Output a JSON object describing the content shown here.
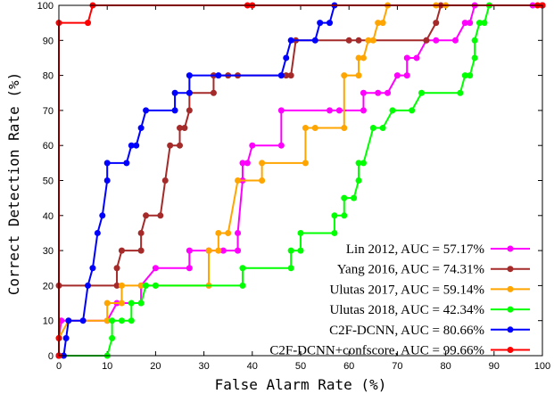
{
  "chart_data": {
    "type": "line",
    "xlabel": "False Alarm Rate (%)",
    "ylabel": "Correct Detection Rate (%)",
    "xlim": [
      0,
      100
    ],
    "ylim": [
      0,
      100
    ],
    "xticks": [
      "0",
      "10",
      "20",
      "30",
      "40",
      "50",
      "60",
      "70",
      "80",
      "90",
      "100"
    ],
    "yticks": [
      "0",
      "10",
      "20",
      "30",
      "40",
      "50",
      "60",
      "70",
      "80",
      "90",
      "100"
    ],
    "grid": false,
    "legend_position": "bottom-right",
    "series": [
      {
        "name": "Lin 2012, AUC = 57.17%",
        "color": "#ff00ff",
        "points": [
          [
            0,
            0
          ],
          [
            0,
            5
          ],
          [
            0.5,
            10
          ],
          [
            10,
            10
          ],
          [
            12,
            15
          ],
          [
            17,
            15
          ],
          [
            17,
            20
          ],
          [
            20,
            25
          ],
          [
            27,
            25
          ],
          [
            27,
            30
          ],
          [
            31,
            30
          ],
          [
            34,
            30
          ],
          [
            37,
            30
          ],
          [
            37,
            35
          ],
          [
            38,
            50
          ],
          [
            38,
            55
          ],
          [
            39,
            55
          ],
          [
            40,
            60
          ],
          [
            46,
            60
          ],
          [
            46,
            70
          ],
          [
            56,
            70
          ],
          [
            58,
            70
          ],
          [
            63,
            70
          ],
          [
            63,
            75
          ],
          [
            66,
            75
          ],
          [
            68,
            75
          ],
          [
            70,
            80
          ],
          [
            72,
            80
          ],
          [
            72,
            85
          ],
          [
            74,
            85
          ],
          [
            76,
            90
          ],
          [
            78,
            90
          ],
          [
            82,
            90
          ],
          [
            84,
            95
          ],
          [
            85,
            95
          ],
          [
            86,
            100
          ],
          [
            98,
            100
          ],
          [
            100,
            100
          ]
        ]
      },
      {
        "name": "Yang 2016, AUC = 74.31%",
        "color": "#a52a2a",
        "points": [
          [
            0,
            0
          ],
          [
            0,
            20
          ],
          [
            12,
            20
          ],
          [
            12,
            25
          ],
          [
            13,
            30
          ],
          [
            17,
            30
          ],
          [
            17,
            35
          ],
          [
            18,
            40
          ],
          [
            21,
            40
          ],
          [
            22,
            50
          ],
          [
            23,
            60
          ],
          [
            25,
            60
          ],
          [
            25,
            65
          ],
          [
            26,
            65
          ],
          [
            27,
            70
          ],
          [
            27,
            75
          ],
          [
            32,
            75
          ],
          [
            32,
            80
          ],
          [
            35,
            80
          ],
          [
            37,
            80
          ],
          [
            47,
            80
          ],
          [
            48,
            80
          ],
          [
            49,
            90
          ],
          [
            60,
            90
          ],
          [
            62,
            90
          ],
          [
            76,
            90
          ],
          [
            78,
            95
          ],
          [
            79,
            100
          ],
          [
            100,
            100
          ]
        ]
      },
      {
        "name": "Ulutas 2017, AUC = 59.14%",
        "color": "#ffa500",
        "points": [
          [
            0,
            0
          ],
          [
            0,
            5
          ],
          [
            2,
            10
          ],
          [
            10,
            10
          ],
          [
            10,
            15
          ],
          [
            13,
            15
          ],
          [
            13,
            20
          ],
          [
            17,
            20
          ],
          [
            20,
            20
          ],
          [
            31,
            20
          ],
          [
            31,
            30
          ],
          [
            33,
            30
          ],
          [
            33,
            35
          ],
          [
            35,
            35
          ],
          [
            37,
            50
          ],
          [
            42,
            50
          ],
          [
            42,
            55
          ],
          [
            51,
            55
          ],
          [
            51,
            65
          ],
          [
            53,
            65
          ],
          [
            59,
            65
          ],
          [
            59,
            80
          ],
          [
            62,
            80
          ],
          [
            62,
            85
          ],
          [
            63,
            85
          ],
          [
            64,
            90
          ],
          [
            65,
            90
          ],
          [
            66,
            95
          ],
          [
            67,
            95
          ],
          [
            68,
            100
          ],
          [
            78,
            100
          ],
          [
            80,
            100
          ],
          [
            100,
            100
          ]
        ]
      },
      {
        "name": "Ulutas 2018, AUC = 42.34%",
        "color": "#00ff00",
        "points": [
          [
            0,
            0
          ],
          [
            10,
            0
          ],
          [
            11,
            5
          ],
          [
            11,
            10
          ],
          [
            13,
            10
          ],
          [
            15,
            10
          ],
          [
            15,
            15
          ],
          [
            17,
            15
          ],
          [
            18,
            20
          ],
          [
            20,
            20
          ],
          [
            38,
            20
          ],
          [
            38,
            25
          ],
          [
            48,
            25
          ],
          [
            48,
            30
          ],
          [
            50,
            30
          ],
          [
            50,
            35
          ],
          [
            57,
            35
          ],
          [
            57,
            40
          ],
          [
            59,
            40
          ],
          [
            59,
            45
          ],
          [
            61,
            45
          ],
          [
            62,
            50
          ],
          [
            62,
            55
          ],
          [
            63,
            55
          ],
          [
            65,
            65
          ],
          [
            67,
            65
          ],
          [
            69,
            70
          ],
          [
            73,
            70
          ],
          [
            75,
            75
          ],
          [
            83,
            75
          ],
          [
            84,
            80
          ],
          [
            85,
            80
          ],
          [
            86,
            85
          ],
          [
            86,
            90
          ],
          [
            87,
            95
          ],
          [
            88,
            95
          ],
          [
            89,
            100
          ],
          [
            100,
            100
          ]
        ]
      },
      {
        "name": "C2F-DCNN, AUC = 80.66%",
        "color": "#0000ff",
        "points": [
          [
            0,
            0
          ],
          [
            1,
            0
          ],
          [
            1.5,
            5
          ],
          [
            2,
            10
          ],
          [
            5,
            10
          ],
          [
            6,
            20
          ],
          [
            7,
            25
          ],
          [
            8,
            35
          ],
          [
            9,
            40
          ],
          [
            10,
            50
          ],
          [
            10,
            55
          ],
          [
            14,
            55
          ],
          [
            15,
            60
          ],
          [
            16,
            60
          ],
          [
            17,
            65
          ],
          [
            18,
            70
          ],
          [
            24,
            70
          ],
          [
            24,
            75
          ],
          [
            27,
            75
          ],
          [
            27,
            80
          ],
          [
            33,
            80
          ],
          [
            46,
            80
          ],
          [
            47,
            85
          ],
          [
            48,
            90
          ],
          [
            53,
            90
          ],
          [
            54,
            95
          ],
          [
            56,
            95
          ],
          [
            57,
            100
          ],
          [
            100,
            100
          ]
        ]
      },
      {
        "name": "C2F-DCNN+confscore, AUC = 99.66%",
        "color": "#ff0000",
        "points": [
          [
            0,
            0
          ],
          [
            0,
            5
          ],
          [
            0,
            95
          ],
          [
            6,
            95
          ],
          [
            7,
            100
          ],
          [
            39,
            100
          ],
          [
            40,
            100
          ],
          [
            99,
            100
          ],
          [
            100,
            100
          ]
        ]
      }
    ]
  }
}
